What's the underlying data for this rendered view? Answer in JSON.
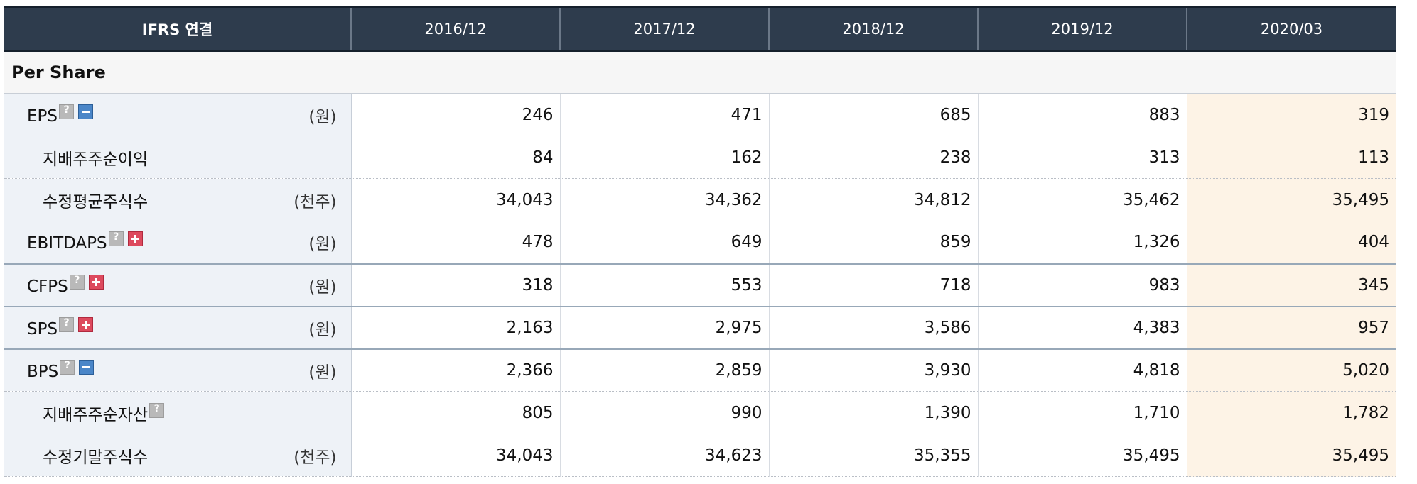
{
  "header": {
    "title": "IFRS 연결",
    "periods": [
      "2016/12",
      "2017/12",
      "2018/12",
      "2019/12",
      "2020/03"
    ]
  },
  "section": "Per Share",
  "rows": [
    {
      "label": "EPS",
      "unit": "(원)",
      "values": [
        "246",
        "471",
        "685",
        "883",
        "319"
      ]
    },
    {
      "label": "지배주주순이익",
      "unit": "",
      "values": [
        "84",
        "162",
        "238",
        "313",
        "113"
      ]
    },
    {
      "label": "수정평균주식수",
      "unit": "(천주)",
      "values": [
        "34,043",
        "34,362",
        "34,812",
        "35,462",
        "35,495"
      ]
    },
    {
      "label": "EBITDAPS",
      "unit": "(원)",
      "values": [
        "478",
        "649",
        "859",
        "1,326",
        "404"
      ]
    },
    {
      "label": "CFPS",
      "unit": "(원)",
      "values": [
        "318",
        "553",
        "718",
        "983",
        "345"
      ]
    },
    {
      "label": "SPS",
      "unit": "(원)",
      "values": [
        "2,163",
        "2,975",
        "3,586",
        "4,383",
        "957"
      ]
    },
    {
      "label": "BPS",
      "unit": "(원)",
      "values": [
        "2,366",
        "2,859",
        "3,930",
        "4,818",
        "5,020"
      ]
    },
    {
      "label": "지배주주순자산",
      "unit": "",
      "values": [
        "805",
        "990",
        "1,390",
        "1,710",
        "1,782"
      ]
    },
    {
      "label": "수정기말주식수",
      "unit": "(천주)",
      "values": [
        "34,043",
        "34,623",
        "35,355",
        "35,495",
        "35,495"
      ]
    }
  ],
  "colors": {
    "header_bg": "#2e3c4d",
    "label_bg": "#eef2f7",
    "latest_bg": "#fdf3e6"
  }
}
